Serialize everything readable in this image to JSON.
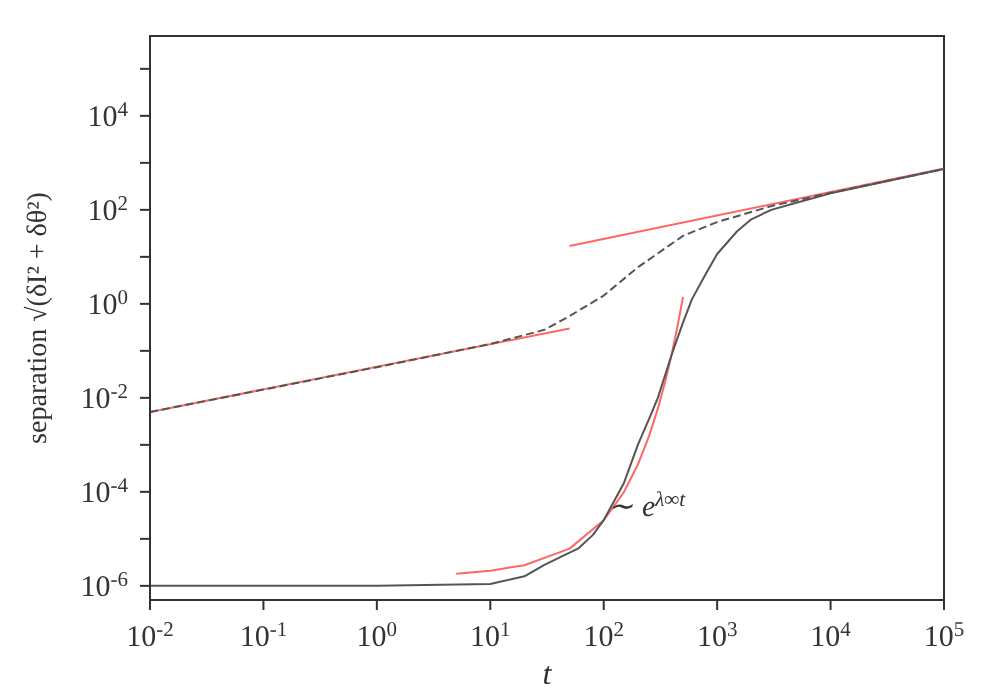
{
  "chart_data": {
    "type": "line",
    "xlabel": "t",
    "ylabel": "separation √(δI² + δθ²)",
    "log": "xy",
    "xlim": [
      0.01,
      100000
    ],
    "ylim": [
      5e-07,
      500000
    ],
    "xticks": [
      {
        "value": 0.01,
        "label": "10$^{-2}$"
      },
      {
        "value": 0.1,
        "label": "10$^{-1}$"
      },
      {
        "value": 1,
        "label": "10$^{0}$"
      },
      {
        "value": 10,
        "label": "10$^{1}$"
      },
      {
        "value": 100,
        "label": "10$^{2}$"
      },
      {
        "value": 1000,
        "label": "10$^{3}$"
      },
      {
        "value": 10000,
        "label": "10$^{4}$"
      },
      {
        "value": 100000,
        "label": "10$^{5}$"
      }
    ],
    "yticks": [
      {
        "value": 1e-06,
        "label": "10$^{-6}$"
      },
      {
        "value": 1e-05,
        "label": null
      },
      {
        "value": 0.0001,
        "label": "10$^{-4}$"
      },
      {
        "value": 0.001,
        "label": null
      },
      {
        "value": 0.01,
        "label": "10$^{-2}$"
      },
      {
        "value": 0.1,
        "label": null
      },
      {
        "value": 1,
        "label": "10$^{0}$"
      },
      {
        "value": 10,
        "label": null
      },
      {
        "value": 100,
        "label": "10$^{2}$"
      },
      {
        "value": 1000,
        "label": null
      },
      {
        "value": 10000,
        "label": "10$^{4}$"
      },
      {
        "value": 100000,
        "label": null
      }
    ],
    "series": [
      {
        "color": "#555555",
        "line_style": "dashed",
        "x": [
          0.01,
          0.1,
          1,
          10,
          30,
          50,
          100,
          200,
          500,
          1000,
          3000,
          10000,
          100000
        ],
        "values": [
          0.005,
          0.015,
          0.045,
          0.14,
          0.28,
          0.55,
          1.5,
          6,
          28,
          55,
          120,
          230,
          740
        ]
      },
      {
        "color": "#555555",
        "line_style": "solid",
        "x": [
          0.01,
          1,
          10,
          20,
          30,
          45,
          60,
          80,
          100,
          150,
          200,
          250,
          300,
          400,
          500,
          600,
          800,
          1000,
          1500,
          2000,
          3000,
          5000,
          10000,
          100000
        ],
        "values": [
          1e-06,
          1e-06,
          1.1e-06,
          1.6e-06,
          2.8e-06,
          4.5e-06,
          6.3e-06,
          1.2e-05,
          2.5e-05,
          0.00015,
          0.001,
          0.0035,
          0.01,
          0.087,
          0.4,
          1.26,
          4.5,
          11.5,
          35,
          63,
          100,
          141,
          224,
          740
        ]
      },
      {
        "color": "#ff6666",
        "line_style": "solid",
        "x": [
          0.01,
          50
        ],
        "values": [
          0.005,
          0.3
        ]
      },
      {
        "color": "#ff6666",
        "line_style": "solid",
        "x": [
          50,
          100000
        ],
        "values": [
          17,
          760
        ]
      },
      {
        "color": "#ff6666",
        "line_style": "solid",
        "x": [
          5,
          10,
          20,
          50,
          100,
          150,
          200,
          250,
          300,
          350,
          400,
          450,
          500
        ],
        "values": [
          1.8e-06,
          2.1e-06,
          2.75e-06,
          6.2e-06,
          2.5e-05,
          9.7e-05,
          0.00038,
          0.0015,
          0.0059,
          0.023,
          0.091,
          0.36,
          1.4
        ]
      }
    ],
    "annotations": [
      {
        "text": "∼ e$^{λ∞t}$",
        "x": 110,
        "y": 3e-05
      }
    ]
  }
}
